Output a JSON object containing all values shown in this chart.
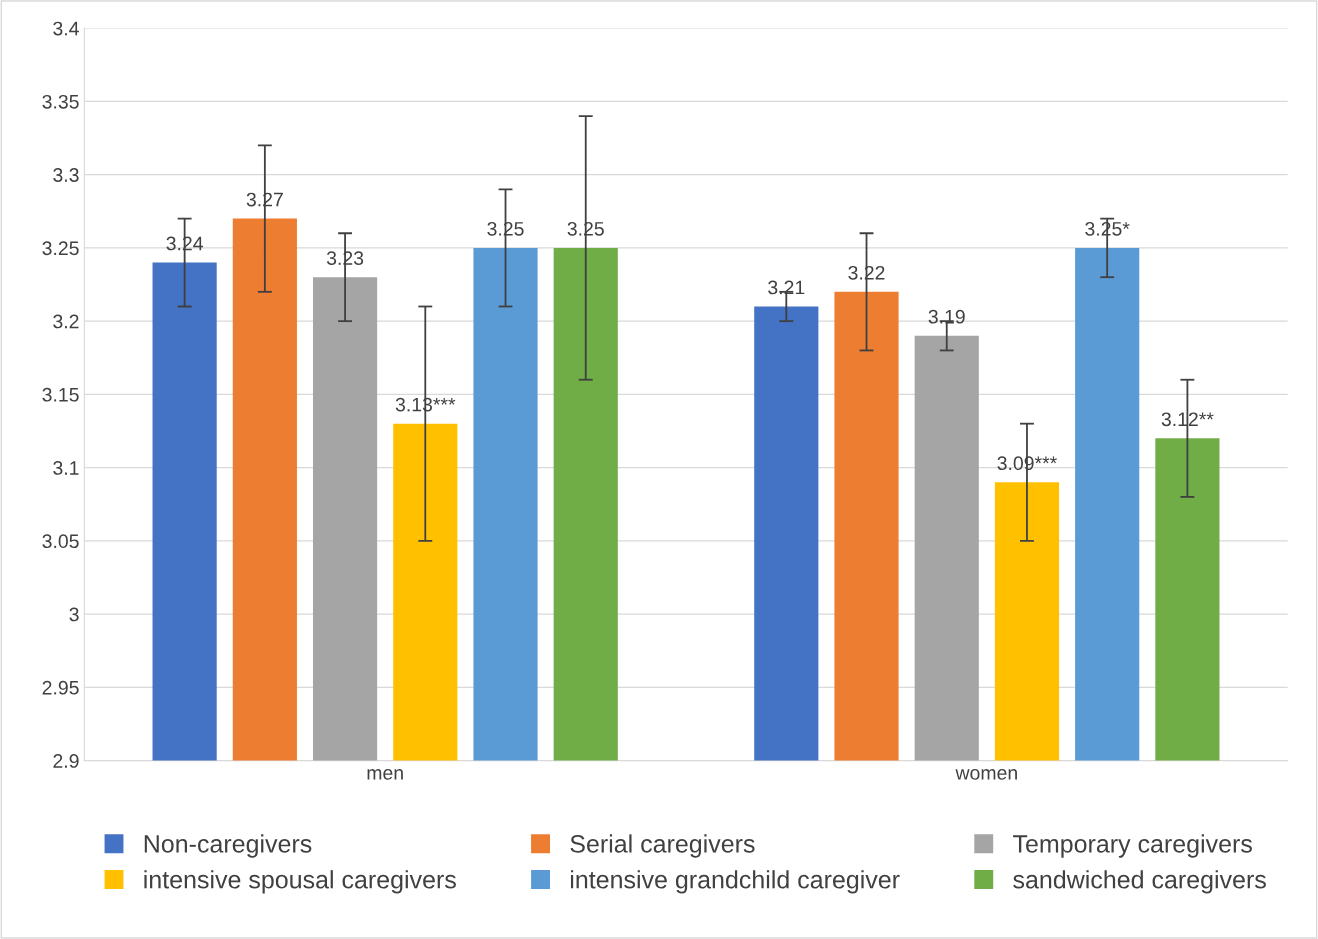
{
  "chart_data": {
    "type": "bar",
    "categories": [
      "men",
      "women"
    ],
    "series": [
      {
        "name": "Non-caregivers",
        "color": "#4472c4",
        "values": [
          3.24,
          3.21
        ],
        "errors": [
          0.03,
          0.01
        ],
        "value_labels": [
          "3.24",
          "3.21"
        ]
      },
      {
        "name": "Serial caregivers",
        "color": "#ed7d31",
        "values": [
          3.27,
          3.22
        ],
        "errors": [
          0.05,
          0.04
        ],
        "value_labels": [
          "3.27",
          "3.22"
        ]
      },
      {
        "name": "Temporary caregivers",
        "color": "#a5a5a5",
        "values": [
          3.23,
          3.19
        ],
        "errors": [
          0.03,
          0.01
        ],
        "value_labels": [
          "3.23",
          "3.19"
        ]
      },
      {
        "name": "intensive spousal caregivers",
        "color": "#ffc000",
        "values": [
          3.13,
          3.09
        ],
        "errors": [
          0.08,
          0.04
        ],
        "value_labels": [
          "3.13***",
          "3.09***"
        ]
      },
      {
        "name": "intensive grandchild caregiver",
        "color": "#5b9bd5",
        "values": [
          3.25,
          3.25
        ],
        "errors": [
          0.04,
          0.02
        ],
        "value_labels": [
          "3.25",
          "3.25*"
        ]
      },
      {
        "name": "sandwiched caregivers",
        "color": "#70ad47",
        "values": [
          3.25,
          3.12
        ],
        "errors": [
          0.09,
          0.04
        ],
        "value_labels": [
          "3.25",
          "3.12**"
        ]
      }
    ],
    "ylim": [
      2.9,
      3.4
    ],
    "yticks": [
      2.9,
      2.95,
      3,
      3.05,
      3.1,
      3.15,
      3.2,
      3.25,
      3.3,
      3.35,
      3.4
    ],
    "grid": "y",
    "legend": "bottom"
  }
}
